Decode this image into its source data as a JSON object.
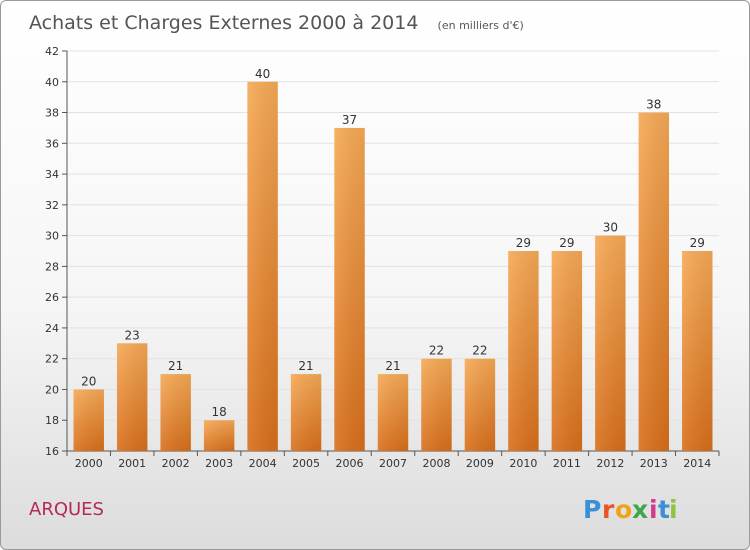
{
  "header": {
    "title": "Achats et Charges Externes 2000 à 2014",
    "unit": "(en milliers d'€)"
  },
  "place": "ARQUES",
  "logo": {
    "letters": [
      "P",
      "r",
      "o",
      "x",
      "i",
      "t",
      "i"
    ],
    "colors": [
      "#3a8fd6",
      "#e8532a",
      "#f0a21a",
      "#3aa84a",
      "#d23a8a",
      "#3a8fd6",
      "#8cc63f"
    ]
  },
  "colors": {
    "bar_light": "#f6a955",
    "bar_dark": "#d86e1a",
    "title": "#555555",
    "place": "#b22a5a"
  },
  "chart_data": {
    "type": "bar",
    "title": "Achats et Charges Externes 2000 à 2014",
    "subtitle": "(en milliers d'€)",
    "xlabel": "",
    "ylabel": "",
    "categories": [
      "2000",
      "2001",
      "2002",
      "2003",
      "2004",
      "2005",
      "2006",
      "2007",
      "2008",
      "2009",
      "2010",
      "2011",
      "2012",
      "2013",
      "2014"
    ],
    "values": [
      20,
      23,
      21,
      18,
      40,
      21,
      37,
      21,
      22,
      22,
      29,
      29,
      30,
      38,
      29
    ],
    "ylim": [
      16,
      42
    ],
    "yticks": [
      16,
      18,
      20,
      22,
      24,
      26,
      28,
      30,
      32,
      34,
      36,
      38,
      40,
      42
    ],
    "grid": true,
    "legend": "none"
  }
}
